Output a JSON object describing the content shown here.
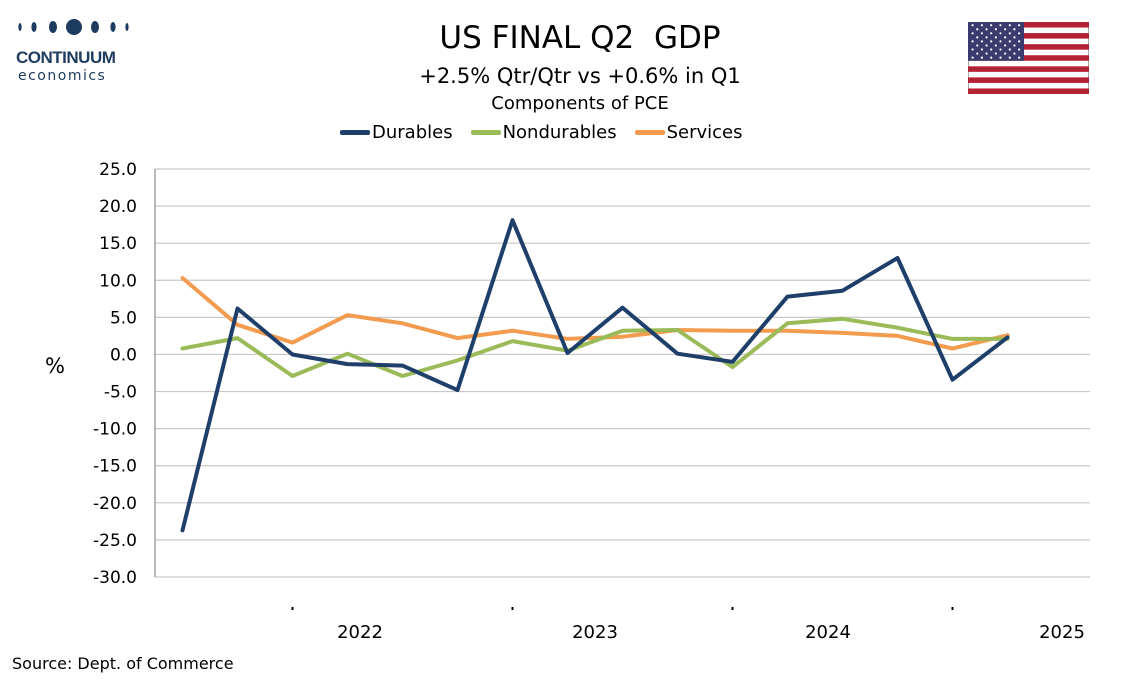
{
  "logo": {
    "name": "CONTINUUM",
    "sub": "economics"
  },
  "header": {
    "title": "US FINAL Q2  GDP",
    "subtitle": "+2.5% Qtr/Qtr vs +0.6% in Q1",
    "subtitle2": "Components of PCE"
  },
  "source": "Source: Dept. of Commerce",
  "colors": {
    "durables": "#1f3f6b",
    "nondurables": "#9bbb59",
    "services": "#f39c4f",
    "grid": "#c8c8c8",
    "axis": "#8c8c8c"
  },
  "chart_data": {
    "type": "line",
    "title": "US FINAL Q2  GDP",
    "ylabel": "%",
    "ylim": [
      -30,
      25
    ],
    "yticks": [
      "25.0",
      "20.0",
      "15.0",
      "10.0",
      "5.0",
      "0.0",
      "-5.0",
      "-10.0",
      "-15.0",
      "-20.0",
      "-25.0",
      "-30.0"
    ],
    "year_labels": [
      "2022",
      "2023",
      "2024",
      "2025"
    ],
    "x": [
      "2021Q2",
      "2021Q3",
      "2021Q4",
      "2022Q1",
      "2022Q2",
      "2022Q3",
      "2022Q4",
      "2023Q1",
      "2023Q2",
      "2023Q3",
      "2023Q4",
      "2024Q1",
      "2024Q2",
      "2024Q3",
      "2024Q4",
      "2025Q1",
      "2025Q2"
    ],
    "grid": true,
    "legend": "top-center",
    "series": [
      {
        "name": "Durables",
        "color": "#1f3f6b",
        "values": [
          -23.7,
          6.2,
          0.0,
          -1.3,
          -1.5,
          -4.8,
          18.1,
          0.2,
          6.3,
          0.1,
          -1.0,
          7.8,
          8.6,
          13.0,
          -3.4,
          2.3,
          null
        ]
      },
      {
        "name": "Nondurables",
        "color": "#9bbb59",
        "values": [
          0.8,
          2.2,
          -2.9,
          0.1,
          -2.9,
          -0.8,
          1.8,
          0.5,
          3.2,
          3.3,
          -1.7,
          4.2,
          4.8,
          3.6,
          2.1,
          2.1,
          null
        ]
      },
      {
        "name": "Services",
        "color": "#f39c4f",
        "values": [
          10.3,
          4.0,
          1.6,
          5.3,
          4.2,
          2.2,
          3.2,
          2.1,
          2.4,
          3.3,
          3.2,
          3.2,
          2.9,
          2.5,
          0.8,
          2.6,
          null
        ]
      }
    ]
  }
}
